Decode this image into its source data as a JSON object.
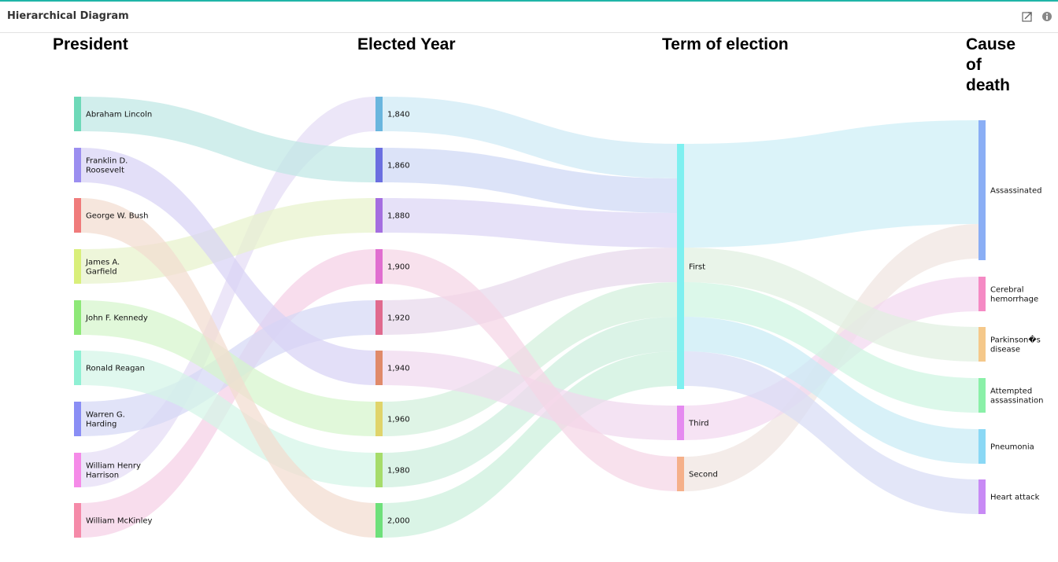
{
  "panel": {
    "title": "Hierarchical Diagram",
    "icons": [
      "export-icon",
      "info-icon"
    ]
  },
  "columns": [
    "President",
    "Elected Year",
    "Term of election",
    "Cause of death"
  ],
  "diagram": {
    "type": "sankey",
    "levels": [
      {
        "name": "President",
        "nodes": [
          {
            "id": "lincoln",
            "label": "Abraham Lincoln",
            "color": "#6ed9b8"
          },
          {
            "id": "fdr",
            "label": "Franklin D. Roosevelt",
            "color": "#9b8ef0"
          },
          {
            "id": "bush",
            "label": "George W. Bush",
            "color": "#f07b7b"
          },
          {
            "id": "garfield",
            "label": "James A. Garfield",
            "color": "#d9ef7a"
          },
          {
            "id": "jfk",
            "label": "John F. Kennedy",
            "color": "#8ee878"
          },
          {
            "id": "reagan",
            "label": "Ronald Reagan",
            "color": "#8ff0d4"
          },
          {
            "id": "harding",
            "label": "Warren G. Harding",
            "color": "#8a8ef5"
          },
          {
            "id": "harrison",
            "label": "William Henry Harrison",
            "color": "#f58ae8"
          },
          {
            "id": "mckinley",
            "label": "William McKinley",
            "color": "#f58aa8"
          }
        ]
      },
      {
        "name": "Elected Year",
        "nodes": [
          {
            "id": "y1840",
            "label": "1,840",
            "color": "#6ab6de"
          },
          {
            "id": "y1860",
            "label": "1,860",
            "color": "#6b6fe0"
          },
          {
            "id": "y1880",
            "label": "1,880",
            "color": "#a46ee0"
          },
          {
            "id": "y1900",
            "label": "1,900",
            "color": "#e06ed0"
          },
          {
            "id": "y1920",
            "label": "1,920",
            "color": "#e06a8e"
          },
          {
            "id": "y1940",
            "label": "1,940",
            "color": "#e08a6a"
          },
          {
            "id": "y1960",
            "label": "1,960",
            "color": "#e0d46a"
          },
          {
            "id": "y1980",
            "label": "1,980",
            "color": "#a6dc6a"
          },
          {
            "id": "y2000",
            "label": "2,000",
            "color": "#6ee07a"
          }
        ]
      },
      {
        "name": "Term of election",
        "nodes": [
          {
            "id": "first",
            "label": "First",
            "color": "#7ef0f0"
          },
          {
            "id": "third",
            "label": "Third",
            "color": "#e58af0"
          },
          {
            "id": "second",
            "label": "Second",
            "color": "#f5b08a"
          }
        ]
      },
      {
        "name": "Cause of death",
        "nodes": [
          {
            "id": "assassinated",
            "label": "Assassinated",
            "color": "#8aaef5"
          },
          {
            "id": "cerebral",
            "label": "Cerebral hemorrhage",
            "color": "#f58ac4"
          },
          {
            "id": "parkinsons",
            "label": "Parkinson�s disease",
            "color": "#f5c88a"
          },
          {
            "id": "attempted",
            "label": "Attempted assassination",
            "color": "#8af0a8"
          },
          {
            "id": "pneumonia",
            "label": "Pneumonia",
            "color": "#8ad8f5"
          },
          {
            "id": "heart",
            "label": "Heart attack",
            "color": "#c88af5"
          }
        ]
      }
    ],
    "links": [
      {
        "source": "lincoln",
        "target": "y1860",
        "value": 1,
        "color": "#bfe8e4"
      },
      {
        "source": "fdr",
        "target": "y1940",
        "value": 1,
        "color": "#d8d2f5"
      },
      {
        "source": "bush",
        "target": "y2000",
        "value": 1,
        "color": "#f2ddd0"
      },
      {
        "source": "garfield",
        "target": "y1880",
        "value": 1,
        "color": "#e8f2cc"
      },
      {
        "source": "jfk",
        "target": "y1960",
        "value": 1,
        "color": "#d6f5cc"
      },
      {
        "source": "reagan",
        "target": "y1980",
        "value": 1,
        "color": "#d4f5e8"
      },
      {
        "source": "harding",
        "target": "y1920",
        "value": 1,
        "color": "#d6d8f5"
      },
      {
        "source": "harrison",
        "target": "y1840",
        "value": 1,
        "color": "#e4dcf5"
      },
      {
        "source": "mckinley",
        "target": "y1900",
        "value": 1,
        "color": "#f5d0e6"
      },
      {
        "source": "y1840",
        "target": "first",
        "value": 1,
        "color": "#cfeaf5"
      },
      {
        "source": "y1860",
        "target": "first",
        "value": 1,
        "color": "#cfd8f5"
      },
      {
        "source": "y1880",
        "target": "first",
        "value": 1,
        "color": "#dcd6f5"
      },
      {
        "source": "y1900",
        "target": "second",
        "value": 1,
        "color": "#f5d6e6"
      },
      {
        "source": "y1920",
        "target": "first",
        "value": 1,
        "color": "#e8d8ec"
      },
      {
        "source": "y1940",
        "target": "third",
        "value": 1,
        "color": "#f0d8ee"
      },
      {
        "source": "y1960",
        "target": "first",
        "value": 1,
        "color": "#d2f0dc"
      },
      {
        "source": "y1980",
        "target": "first",
        "value": 1,
        "color": "#cdeede"
      },
      {
        "source": "y2000",
        "target": "first",
        "value": 1,
        "color": "#ccf0dc"
      },
      {
        "source": "first",
        "target": "assassinated",
        "value": 3,
        "color": "#cdeef6"
      },
      {
        "source": "first",
        "target": "parkinsons",
        "value": 1,
        "color": "#e0f0e0"
      },
      {
        "source": "first",
        "target": "attempted",
        "value": 1,
        "color": "#cff5e2"
      },
      {
        "source": "first",
        "target": "pneumonia",
        "value": 1,
        "color": "#c9ecf5"
      },
      {
        "source": "first",
        "target": "heart",
        "value": 1,
        "color": "#d8dcf5"
      },
      {
        "source": "third",
        "target": "cerebral",
        "value": 1,
        "color": "#f2d8f0"
      },
      {
        "source": "second",
        "target": "assassinated",
        "value": 1,
        "color": "#f0e4e0"
      }
    ]
  }
}
